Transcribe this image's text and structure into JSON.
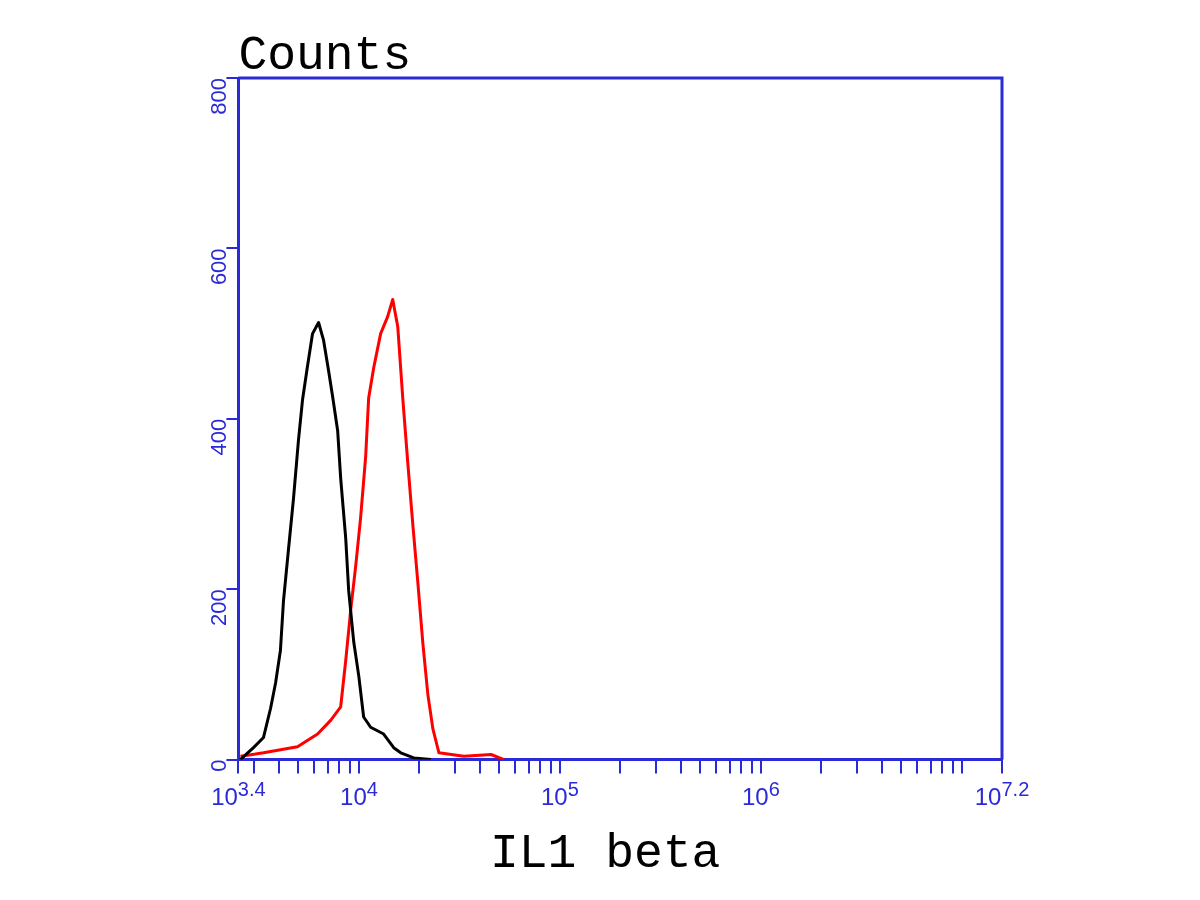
{
  "chart_data": {
    "type": "line",
    "ylabel": "Counts",
    "xlabel": "IL1 beta",
    "log": "x",
    "xlim": [
      2511.886,
      15848931.9
    ],
    "ylim": [
      0,
      800
    ],
    "yticks": [
      0,
      200,
      400,
      600,
      800
    ],
    "xticks": [
      {
        "value": 2511.886,
        "label": "10$^{3.4}$"
      },
      {
        "value": 3000,
        "label": null
      },
      {
        "value": 4000,
        "label": null
      },
      {
        "value": 5000,
        "label": null
      },
      {
        "value": 6000,
        "label": null
      },
      {
        "value": 7000,
        "label": null
      },
      {
        "value": 8000,
        "label": null
      },
      {
        "value": 9000,
        "label": null
      },
      {
        "value": 10000,
        "label": "10$^{4}$"
      },
      {
        "value": 20000,
        "label": null
      },
      {
        "value": 30000,
        "label": null
      },
      {
        "value": 40000,
        "label": null
      },
      {
        "value": 50000,
        "label": null
      },
      {
        "value": 60000,
        "label": null
      },
      {
        "value": 70000,
        "label": null
      },
      {
        "value": 80000,
        "label": null
      },
      {
        "value": 90000,
        "label": null
      },
      {
        "value": 100000,
        "label": "10$^{5}$"
      },
      {
        "value": 200000,
        "label": null
      },
      {
        "value": 300000,
        "label": null
      },
      {
        "value": 400000,
        "label": null
      },
      {
        "value": 500000,
        "label": null
      },
      {
        "value": 600000,
        "label": null
      },
      {
        "value": 700000,
        "label": null
      },
      {
        "value": 800000,
        "label": null
      },
      {
        "value": 900000,
        "label": null
      },
      {
        "value": 1000000,
        "label": "10$^{6}$"
      },
      {
        "value": 2000000,
        "label": null
      },
      {
        "value": 3000000,
        "label": null
      },
      {
        "value": 4000000,
        "label": null
      },
      {
        "value": 5000000,
        "label": null
      },
      {
        "value": 6000000,
        "label": null
      },
      {
        "value": 7000000,
        "label": null
      },
      {
        "value": 8000000,
        "label": null
      },
      {
        "value": 9000000,
        "label": null
      },
      {
        "value": 10000000,
        "label": null
      },
      {
        "value": 15848931.9,
        "label": "10$^{7.2}$"
      }
    ],
    "grid": false,
    "legend": false,
    "marker": "none",
    "line_style": "solid",
    "series": [
      {
        "color": "#000000",
        "x": [
          2570,
          2985,
          3350,
          3630,
          3846,
          4065,
          4210,
          4456,
          4721,
          5000,
          5236,
          5546,
          5875,
          6295,
          6668,
          7063,
          7396,
          7834,
          8110,
          8590,
          8890,
          9420,
          9980,
          10550,
          11430,
          13270,
          14890,
          16140,
          18750,
          22800
        ],
        "values": [
          0,
          14,
          26,
          60,
          90,
          128,
          186,
          246,
          306,
          375,
          422,
          462,
          500,
          513,
          492,
          456,
          426,
          386,
          330,
          260,
          198,
          138,
          98,
          50,
          38,
          30,
          14,
          8,
          2,
          0
        ]
      },
      {
        "color": "#ff0000",
        "x": [
          2570,
          3350,
          4945,
          6223,
          7228,
          8110,
          8590,
          9100,
          9640,
          10190,
          10800,
          11170,
          11840,
          12820,
          13890,
          14720,
          15600,
          16520,
          17500,
          18530,
          19630,
          20800,
          22030,
          23330,
          25000,
          33270,
          45400,
          52700
        ],
        "values": [
          4,
          8,
          15,
          30,
          46,
          62,
          116,
          176,
          228,
          284,
          356,
          424,
          460,
          500,
          520,
          540,
          508,
          424,
          348,
          276,
          208,
          136,
          76,
          36,
          8,
          4,
          6,
          0
        ]
      }
    ]
  }
}
